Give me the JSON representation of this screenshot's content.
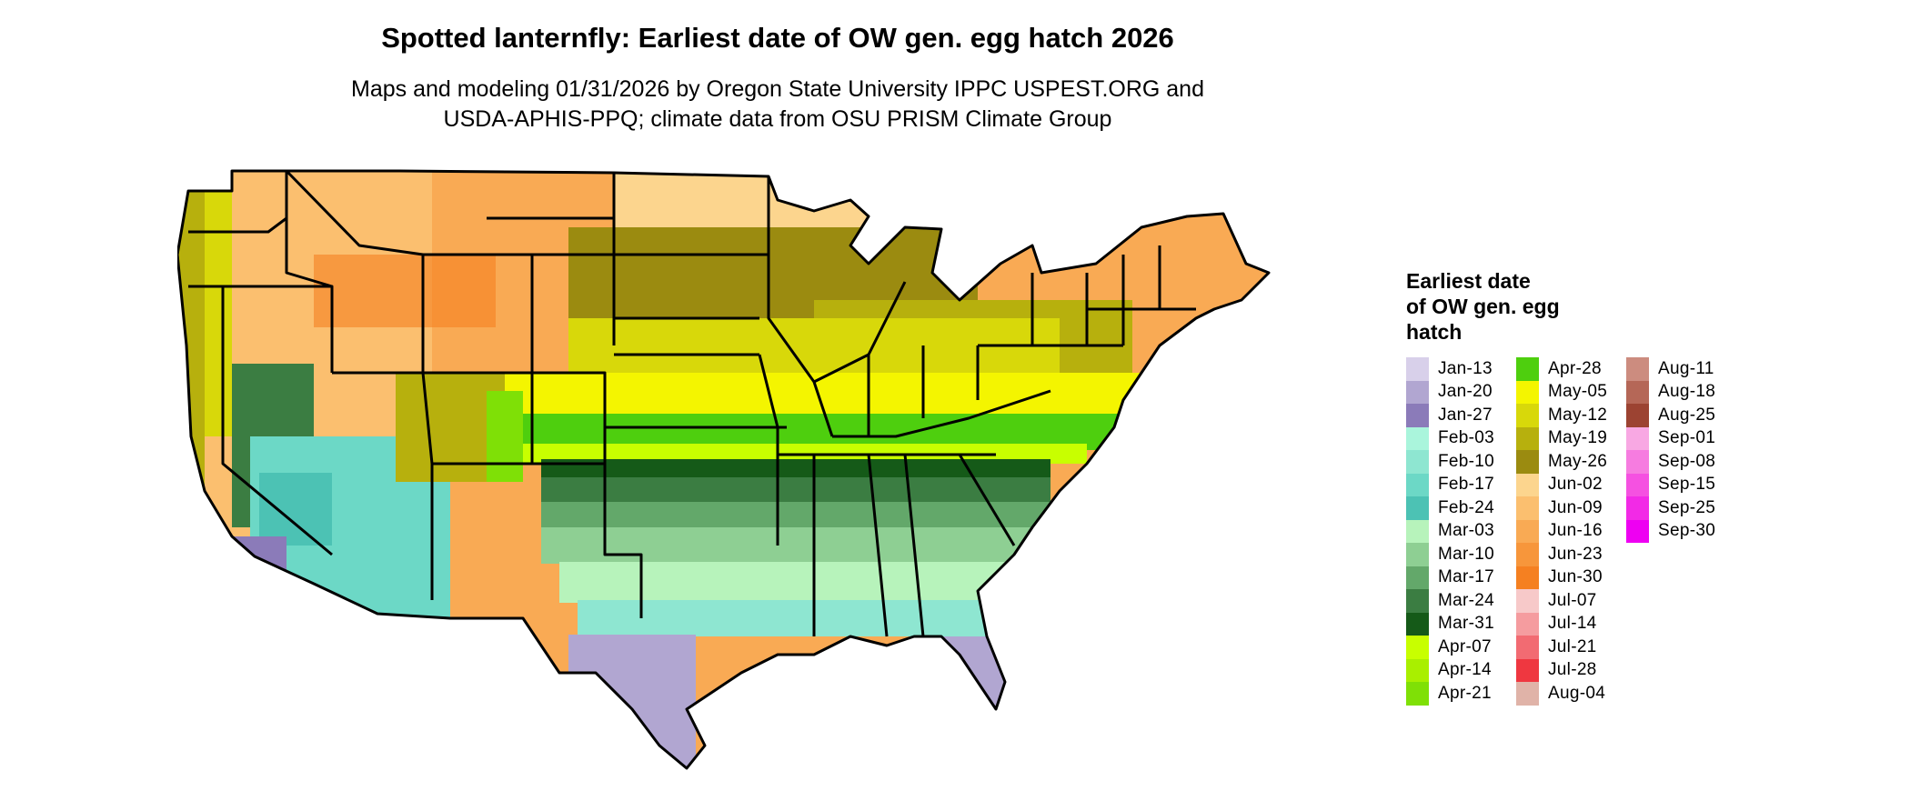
{
  "header": {
    "title": "Spotted lanternfly: Earliest date of OW gen. egg hatch 2026",
    "subtitle_line1": "Maps and modeling 01/31/2026 by Oregon State University IPPC USPEST.ORG and",
    "subtitle_line2": "USDA-APHIS-PPQ; climate data from OSU PRISM Climate Group"
  },
  "legend": {
    "title_lines": [
      "Earliest date",
      "of OW gen. egg",
      "hatch"
    ],
    "columns": [
      [
        {
          "label": "Jan-13",
          "color": "#d8d0ea"
        },
        {
          "label": "Jan-20",
          "color": "#b1a6d1"
        },
        {
          "label": "Jan-27",
          "color": "#8b7bb9"
        },
        {
          "label": "Feb-03",
          "color": "#aaf5dc"
        },
        {
          "label": "Feb-10",
          "color": "#8ee6d1"
        },
        {
          "label": "Feb-17",
          "color": "#6cd8c6"
        },
        {
          "label": "Feb-24",
          "color": "#4cc2b4"
        },
        {
          "label": "Mar-03",
          "color": "#b7f3bb"
        },
        {
          "label": "Mar-10",
          "color": "#8ecf93"
        },
        {
          "label": "Mar-17",
          "color": "#63a86a"
        },
        {
          "label": "Mar-24",
          "color": "#3b7d42"
        },
        {
          "label": "Mar-31",
          "color": "#155a18"
        },
        {
          "label": "Apr-07",
          "color": "#c8ff00"
        },
        {
          "label": "Apr-14",
          "color": "#a9ef00"
        },
        {
          "label": "Apr-21",
          "color": "#7fe006"
        }
      ],
      [
        {
          "label": "Apr-28",
          "color": "#4ecf0e"
        },
        {
          "label": "May-05",
          "color": "#f4f500"
        },
        {
          "label": "May-12",
          "color": "#d8d80a"
        },
        {
          "label": "May-19",
          "color": "#b7b00d"
        },
        {
          "label": "May-26",
          "color": "#9b8b10"
        },
        {
          "label": "Jun-02",
          "color": "#fcd58e"
        },
        {
          "label": "Jun-09",
          "color": "#fbbf6f"
        },
        {
          "label": "Jun-16",
          "color": "#f9aa54"
        },
        {
          "label": "Jun-23",
          "color": "#f7963b"
        },
        {
          "label": "Jun-30",
          "color": "#f58021"
        },
        {
          "label": "Jul-07",
          "color": "#f7c9c9"
        },
        {
          "label": "Jul-14",
          "color": "#f59c9f"
        },
        {
          "label": "Jul-21",
          "color": "#f26b72"
        },
        {
          "label": "Jul-28",
          "color": "#ef3740"
        },
        {
          "label": "Aug-04",
          "color": "#e0b3a8"
        }
      ],
      [
        {
          "label": "Aug-11",
          "color": "#cc8c7f"
        },
        {
          "label": "Aug-18",
          "color": "#b56757"
        },
        {
          "label": "Aug-25",
          "color": "#9c4332"
        },
        {
          "label": "Sep-01",
          "color": "#f8a8e3"
        },
        {
          "label": "Sep-08",
          "color": "#f67ce0"
        },
        {
          "label": "Sep-15",
          "color": "#f551e1"
        },
        {
          "label": "Sep-25",
          "color": "#f22ae6"
        },
        {
          "label": "Sep-30",
          "color": "#ee00f2"
        }
      ]
    ]
  }
}
